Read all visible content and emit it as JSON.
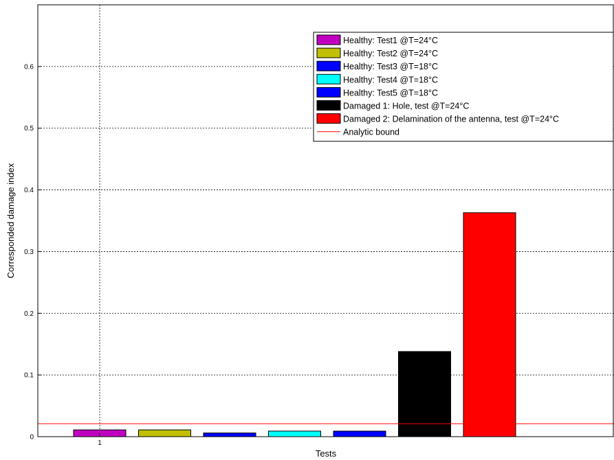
{
  "chart_data": {
    "type": "bar",
    "xlabel": "Tests",
    "ylabel": "Corresponded damage index",
    "x_ticks": [
      "1"
    ],
    "y_ticks": [
      "0",
      "0.1",
      "0.2",
      "0.3",
      "0.4",
      "0.5",
      "0.6"
    ],
    "ylim": [
      0,
      0.7
    ],
    "grid": true,
    "legend_position": "top-right",
    "series": [
      {
        "name": "Healthy: Test1  @T=24°C",
        "value": 0.011,
        "color": "#c000c0"
      },
      {
        "name": "Healthy: Test2  @T=24°C",
        "value": 0.011,
        "color": "#c0c000"
      },
      {
        "name": "Healthy: Test3  @T=18°C",
        "value": 0.006,
        "color": "#0000ff"
      },
      {
        "name": "Healthy: Test4  @T=18°C",
        "value": 0.009,
        "color": "#00ffff"
      },
      {
        "name": "Healthy: Test5   @T=18°C",
        "value": 0.009,
        "color": "#0000ff"
      },
      {
        "name": "Damaged 1: Hole, test  @T=24°C",
        "value": 0.138,
        "color": "#000000"
      },
      {
        "name": "Damaged 2: Delamination of the antenna, test  @T=24°C",
        "value": 0.363,
        "color": "#ff0000"
      }
    ],
    "reference_line": {
      "name": "Analytic bound",
      "value": 0.021,
      "color": "#ff0000"
    }
  }
}
